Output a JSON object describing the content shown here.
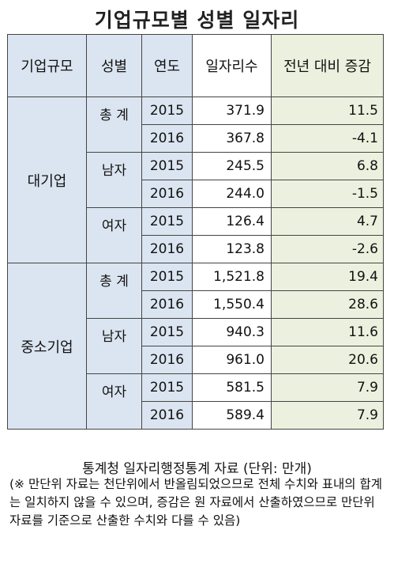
{
  "title": "기업규모별 성별 일자리",
  "headers": {
    "size": "기업규모",
    "gender": "성별",
    "year": "연도",
    "jobs": "일자리수",
    "change": "전년 대비 증감"
  },
  "groups": [
    {
      "size": "대기업",
      "genders": [
        {
          "label": "총 계",
          "rows": [
            {
              "year": "2015",
              "jobs": "371.9",
              "change": "11.5"
            },
            {
              "year": "2016",
              "jobs": "367.8",
              "change": "-4.1"
            }
          ]
        },
        {
          "label": "남자",
          "rows": [
            {
              "year": "2015",
              "jobs": "245.5",
              "change": "6.8"
            },
            {
              "year": "2016",
              "jobs": "244.0",
              "change": "-1.5"
            }
          ]
        },
        {
          "label": "여자",
          "rows": [
            {
              "year": "2015",
              "jobs": "126.4",
              "change": "4.7"
            },
            {
              "year": "2016",
              "jobs": "123.8",
              "change": "-2.6"
            }
          ]
        }
      ]
    },
    {
      "size": "중소기업",
      "genders": [
        {
          "label": "총 계",
          "rows": [
            {
              "year": "2015",
              "jobs": "1,521.8",
              "change": "19.4"
            },
            {
              "year": "2016",
              "jobs": "1,550.4",
              "change": "28.6"
            }
          ]
        },
        {
          "label": "남자",
          "rows": [
            {
              "year": "2015",
              "jobs": "940.3",
              "change": "11.6"
            },
            {
              "year": "2016",
              "jobs": "961.0",
              "change": "20.6"
            }
          ]
        },
        {
          "label": "여자",
          "rows": [
            {
              "year": "2015",
              "jobs": "581.5",
              "change": "7.9"
            },
            {
              "year": "2016",
              "jobs": "589.4",
              "change": "7.9"
            }
          ]
        }
      ]
    }
  ],
  "source": "통계청 일자리행정통계 자료 (단위: 만개)",
  "note": "(※ 만단위 자료는 천단위에서 반올림되었으므로 전체 수치와 표내의 합계는 일치하지 않을 수 있으며, 증감은 원 자료에서 산출하였으므로 만단위 자료를 기준으로 산출한 수치와 다를 수 있음)"
}
